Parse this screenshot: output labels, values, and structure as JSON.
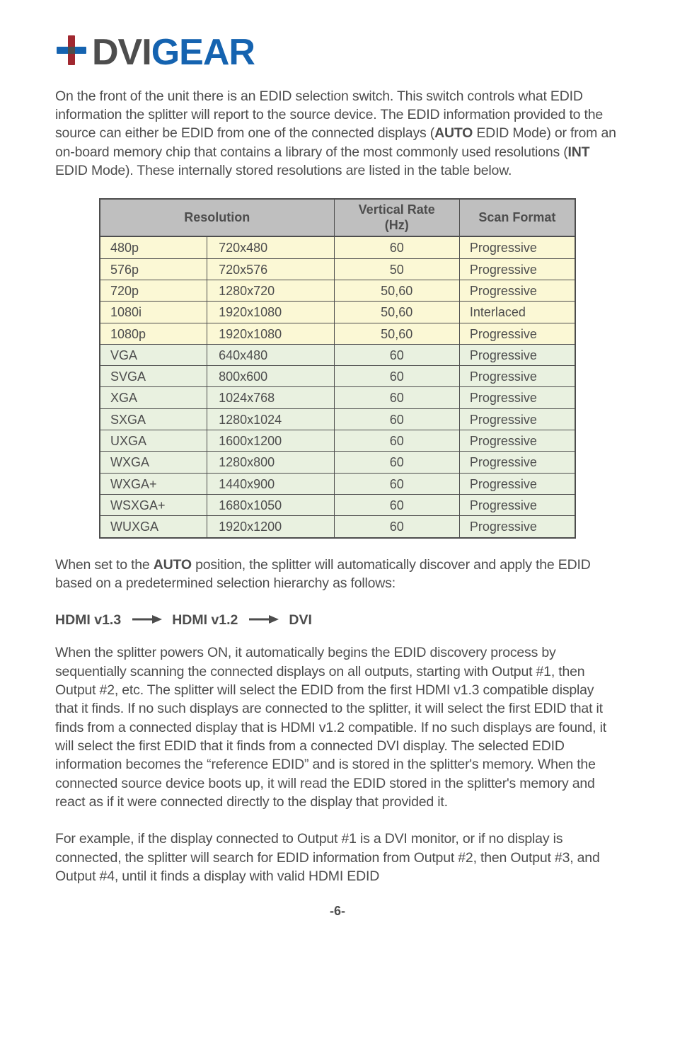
{
  "logo": {
    "part1": "DVI",
    "part2": "GEAR"
  },
  "intro": {
    "text_parts": [
      "On the front of the unit there is an EDID selection switch.  This switch controls what EDID information the splitter will report to the source device.  The EDID information provided to the source can either be EDID from one of the connected displays (",
      "AUTO",
      " EDID Mode) or from an on-board memory chip that contains a library of the most commonly used resolutions (",
      "INT",
      " EDID Mode).  These internally stored resolutions are listed in the table below."
    ]
  },
  "table": {
    "headers": {
      "resolution": "Resolution",
      "vrate": "Vertical Rate\n(Hz)",
      "scan": "Scan Format"
    },
    "rows": [
      {
        "cls": "row-hd",
        "name": "480p",
        "dims": "720x480",
        "hz": "60",
        "scan": "Progressive"
      },
      {
        "cls": "row-hd",
        "name": "576p",
        "dims": "720x576",
        "hz": "50",
        "scan": "Progressive"
      },
      {
        "cls": "row-hd",
        "name": "720p",
        "dims": "1280x720",
        "hz": "50,60",
        "scan": "Progressive"
      },
      {
        "cls": "row-hd",
        "name": "1080i",
        "dims": "1920x1080",
        "hz": "50,60",
        "scan": "Interlaced"
      },
      {
        "cls": "row-hd",
        "name": "1080p",
        "dims": "1920x1080",
        "hz": "50,60",
        "scan": "Progressive"
      },
      {
        "cls": "row-pc",
        "name": "VGA",
        "dims": "640x480",
        "hz": "60",
        "scan": "Progressive"
      },
      {
        "cls": "row-pc",
        "name": "SVGA",
        "dims": "800x600",
        "hz": "60",
        "scan": "Progressive"
      },
      {
        "cls": "row-pc",
        "name": "XGA",
        "dims": "1024x768",
        "hz": "60",
        "scan": "Progressive"
      },
      {
        "cls": "row-pc",
        "name": "SXGA",
        "dims": "1280x1024",
        "hz": "60",
        "scan": "Progressive"
      },
      {
        "cls": "row-pc",
        "name": "UXGA",
        "dims": "1600x1200",
        "hz": "60",
        "scan": "Progressive"
      },
      {
        "cls": "row-pc",
        "name": "WXGA",
        "dims": "1280x800",
        "hz": "60",
        "scan": "Progressive"
      },
      {
        "cls": "row-pc",
        "name": "WXGA+",
        "dims": "1440x900",
        "hz": "60",
        "scan": "Progressive"
      },
      {
        "cls": "row-pc",
        "name": "WSXGA+",
        "dims": "1680x1050",
        "hz": "60",
        "scan": "Progressive"
      },
      {
        "cls": "row-pc",
        "name": "WUXGA",
        "dims": "1920x1200",
        "hz": "60",
        "scan": "Progressive"
      }
    ],
    "colors": {
      "hd_bg": "#fbf8d5",
      "pc_bg": "#e9f1e0",
      "header_bg": "#bfbfbf",
      "border": "#4d4d4d"
    }
  },
  "auto_para": {
    "parts": [
      "When set to the ",
      "AUTO",
      " position, the splitter will automatically discover and apply the EDID based on a predetermined selection hierarchy as follows:"
    ]
  },
  "sequence": {
    "a": "HDMI v1.3",
    "b": "HDMI v1.2",
    "c": "DVI"
  },
  "long_para": "When the splitter powers ON, it automatically begins the EDID discovery process by sequentially scanning the connected displays on all outputs, starting with Output #1, then Output #2, etc.  The splitter will select the EDID from the first HDMI v1.3 compatible display that it finds.  If no such displays are connected to the splitter, it will select the first EDID that it finds from a connected display that is HDMI v1.2 compatible.  If no such displays are found, it will select the first EDID that it finds from a connected DVI display.  The selected EDID information becomes the “reference EDID” and is stored in the splitter's memory.  When the connected source device boots up, it will read the EDID stored in the splitter's memory and react as if it were connected directly to the display that provided it.",
  "tail_para": "For example, if the display connected to Output #1 is a DVI monitor, or if no display is connected, the splitter will search for EDID information from Output #2, then Output #3, and Output #4, until it finds a display with valid HDMI EDID",
  "page_num": "-6-"
}
